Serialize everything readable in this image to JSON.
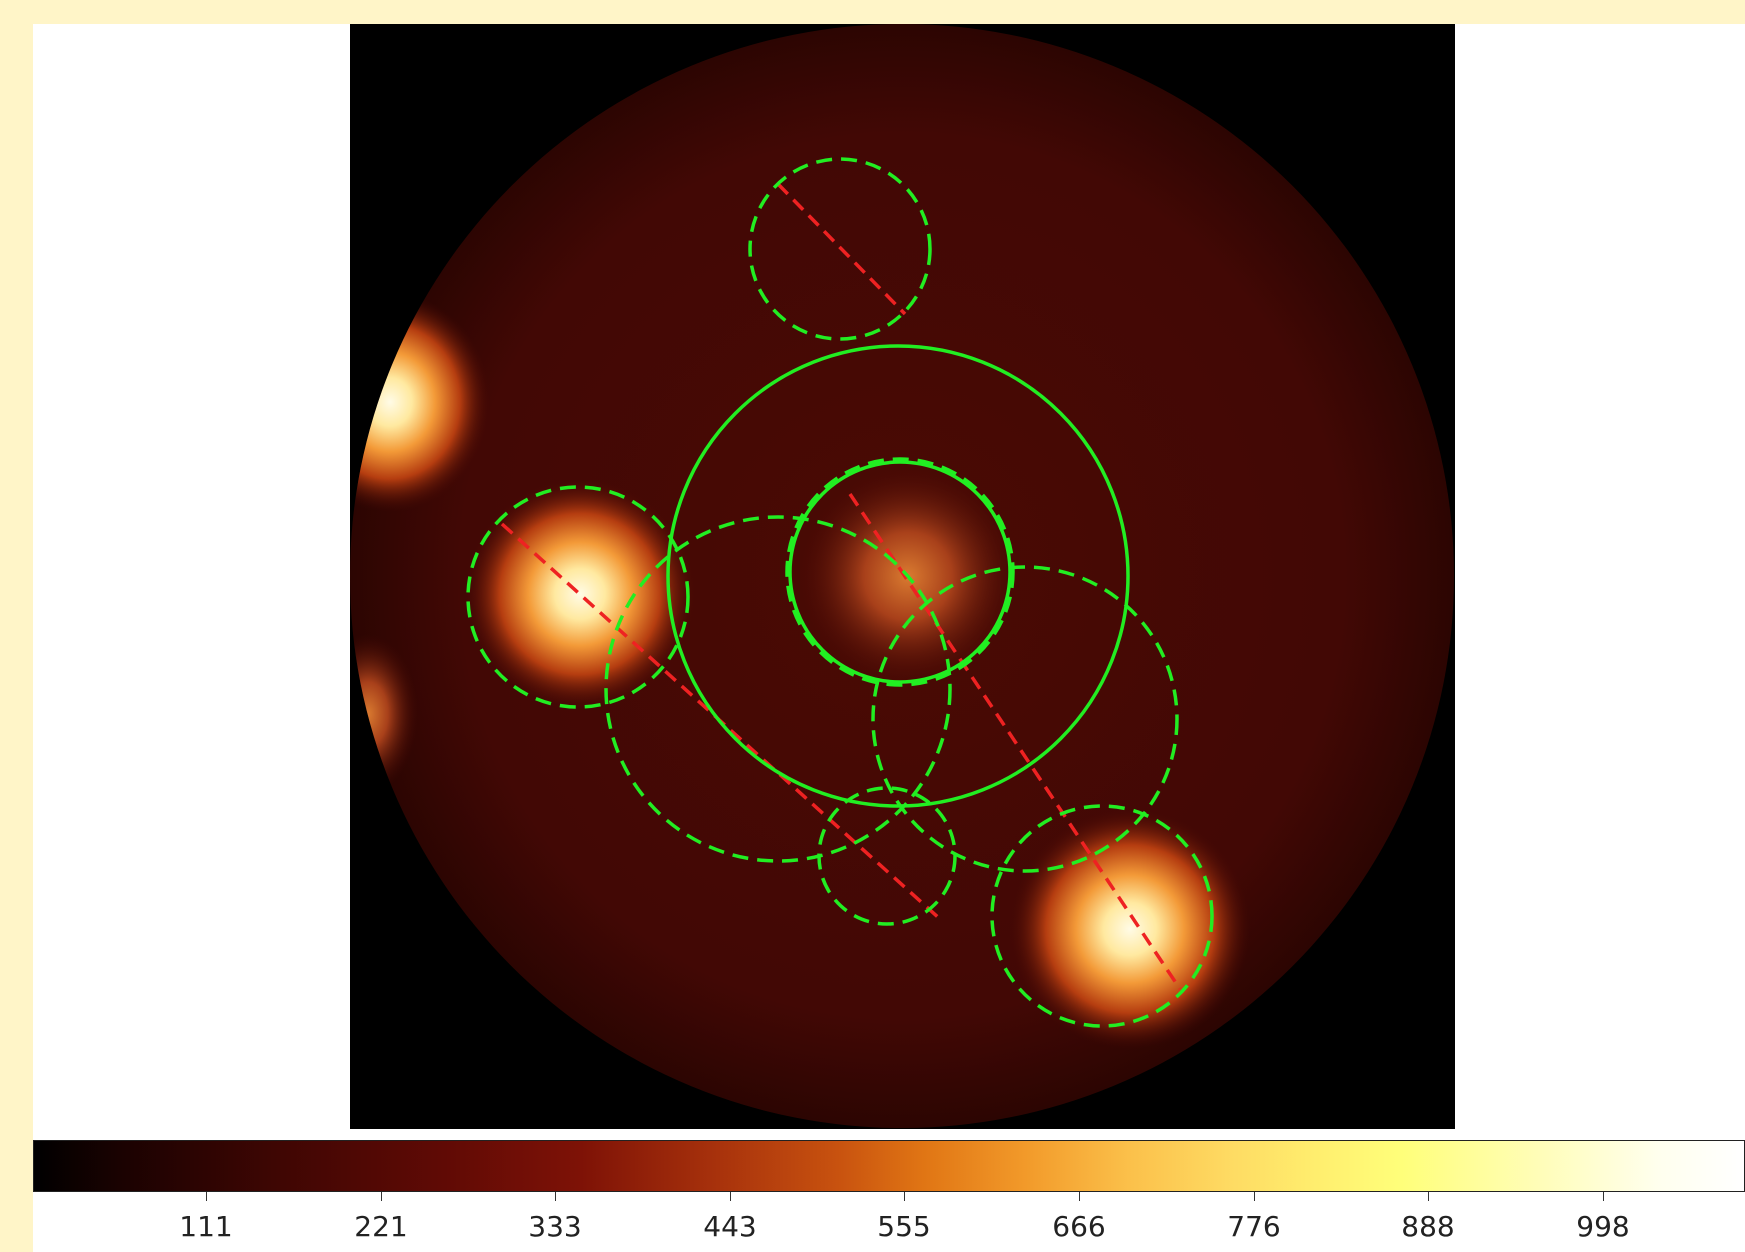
{
  "colors": {
    "background": "#fff5c8",
    "panel": "#ffffff",
    "region_green": "#22ee22",
    "region_red": "#ee2222",
    "heat_dark": "#3a0703",
    "heat_bright": "#fffbe6"
  },
  "colorbar": {
    "scale": "heat",
    "ticks": [
      {
        "label": "111",
        "frac": 0.101
      },
      {
        "label": "221",
        "frac": 0.203
      },
      {
        "label": "333",
        "frac": 0.305
      },
      {
        "label": "443",
        "frac": 0.407
      },
      {
        "label": "555",
        "frac": 0.509
      },
      {
        "label": "666",
        "frac": 0.611
      },
      {
        "label": "776",
        "frac": 0.713
      },
      {
        "label": "888",
        "frac": 0.815
      },
      {
        "label": "998",
        "frac": 0.917
      }
    ]
  },
  "regions": {
    "solid_circle_count": 2,
    "dashed_circle_count": 7,
    "projection_line_count": 3
  }
}
